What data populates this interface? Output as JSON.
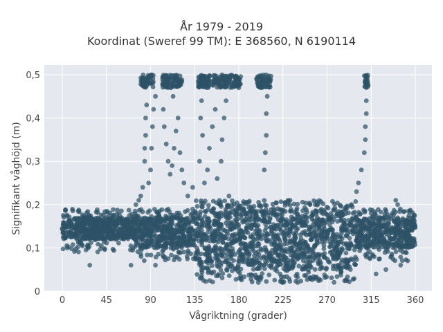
{
  "chart_data": {
    "type": "scatter",
    "title_line1": "År 1979 - 2019",
    "title_line2": "Koordinat (Sweref 99 TM): E 368560, N 6190114",
    "xlabel": "Vågriktning (grader)",
    "ylabel": "Signifikant våghöjd (m)",
    "xlim": [
      -18,
      370
    ],
    "ylim": [
      0,
      0.52
    ],
    "xticks": [
      0,
      45,
      90,
      135,
      180,
      225,
      270,
      315,
      360
    ],
    "xtick_labels": [
      "0",
      "45",
      "90",
      "135",
      "180",
      "225",
      "270",
      "315",
      "360"
    ],
    "yticks": [
      0,
      0.1,
      0.2,
      0.3,
      0.4,
      0.5
    ],
    "ytick_labels": [
      "0",
      "0,1",
      "0,2",
      "0,3",
      "0,4",
      "0,5"
    ],
    "grid": true,
    "legend": "none",
    "marker_color": "#2e5266",
    "plot_background": "#e5e8ee",
    "dense_band": {
      "x_range": [
        0,
        360
      ],
      "core": [
        {
          "x": [
            0,
            75
          ],
          "y": [
            0.12,
            0.17
          ]
        },
        {
          "x": [
            75,
            135
          ],
          "y": [
            0.1,
            0.17
          ]
        },
        {
          "x": [
            135,
            300
          ],
          "y": [
            0.05,
            0.19
          ]
        },
        {
          "x": [
            300,
            360
          ],
          "y": [
            0.1,
            0.17
          ]
        }
      ]
    },
    "clusters_at_0_5": [
      {
        "x": [
          80,
          93
        ],
        "y": [
          0.47,
          0.5
        ]
      },
      {
        "x": [
          102,
          122
        ],
        "y": [
          0.47,
          0.5
        ]
      },
      {
        "x": [
          138,
          182
        ],
        "y": [
          0.47,
          0.5
        ]
      },
      {
        "x": [
          198,
          213
        ],
        "y": [
          0.47,
          0.5
        ]
      },
      {
        "x": [
          308,
          312
        ],
        "y": [
          0.47,
          0.5
        ]
      }
    ],
    "points": [
      {
        "x": 28,
        "y": 0.06
      },
      {
        "x": 70,
        "y": 0.06
      },
      {
        "x": 75,
        "y": 0.2
      },
      {
        "x": 78,
        "y": 0.21
      },
      {
        "x": 80,
        "y": 0.22
      },
      {
        "x": 82,
        "y": 0.24
      },
      {
        "x": 84,
        "y": 0.3
      },
      {
        "x": 84,
        "y": 0.33
      },
      {
        "x": 85,
        "y": 0.36
      },
      {
        "x": 85,
        "y": 0.4
      },
      {
        "x": 86,
        "y": 0.43
      },
      {
        "x": 88,
        "y": 0.25
      },
      {
        "x": 90,
        "y": 0.28
      },
      {
        "x": 91,
        "y": 0.33
      },
      {
        "x": 92,
        "y": 0.38
      },
      {
        "x": 93,
        "y": 0.42
      },
      {
        "x": 95,
        "y": 0.45
      },
      {
        "x": 95,
        "y": 0.06
      },
      {
        "x": 103,
        "y": 0.42
      },
      {
        "x": 104,
        "y": 0.38
      },
      {
        "x": 106,
        "y": 0.34
      },
      {
        "x": 108,
        "y": 0.3
      },
      {
        "x": 110,
        "y": 0.27
      },
      {
        "x": 112,
        "y": 0.29
      },
      {
        "x": 113,
        "y": 0.45
      },
      {
        "x": 114,
        "y": 0.33
      },
      {
        "x": 116,
        "y": 0.37
      },
      {
        "x": 118,
        "y": 0.4
      },
      {
        "x": 120,
        "y": 0.32
      },
      {
        "x": 122,
        "y": 0.28
      },
      {
        "x": 124,
        "y": 0.25
      },
      {
        "x": 128,
        "y": 0.22
      },
      {
        "x": 133,
        "y": 0.24
      },
      {
        "x": 140,
        "y": 0.3
      },
      {
        "x": 141,
        "y": 0.4
      },
      {
        "x": 142,
        "y": 0.44
      },
      {
        "x": 143,
        "y": 0.36
      },
      {
        "x": 145,
        "y": 0.25
      },
      {
        "x": 148,
        "y": 0.28
      },
      {
        "x": 150,
        "y": 0.33
      },
      {
        "x": 153,
        "y": 0.38
      },
      {
        "x": 156,
        "y": 0.42
      },
      {
        "x": 158,
        "y": 0.26
      },
      {
        "x": 162,
        "y": 0.3
      },
      {
        "x": 163,
        "y": 0.35
      },
      {
        "x": 165,
        "y": 0.4
      },
      {
        "x": 167,
        "y": 0.44
      },
      {
        "x": 170,
        "y": 0.22
      },
      {
        "x": 180,
        "y": 0.47
      },
      {
        "x": 206,
        "y": 0.28
      },
      {
        "x": 207,
        "y": 0.32
      },
      {
        "x": 208,
        "y": 0.36
      },
      {
        "x": 208,
        "y": 0.41
      },
      {
        "x": 209,
        "y": 0.45
      },
      {
        "x": 200,
        "y": 0.02
      },
      {
        "x": 225,
        "y": 0.02
      },
      {
        "x": 240,
        "y": 0.02
      },
      {
        "x": 295,
        "y": 0.2
      },
      {
        "x": 300,
        "y": 0.23
      },
      {
        "x": 302,
        "y": 0.25
      },
      {
        "x": 305,
        "y": 0.28
      },
      {
        "x": 308,
        "y": 0.32
      },
      {
        "x": 309,
        "y": 0.35
      },
      {
        "x": 309,
        "y": 0.38
      },
      {
        "x": 310,
        "y": 0.41
      },
      {
        "x": 310,
        "y": 0.44
      },
      {
        "x": 320,
        "y": 0.04
      },
      {
        "x": 330,
        "y": 0.05
      },
      {
        "x": 340,
        "y": 0.21
      },
      {
        "x": 342,
        "y": 0.2
      },
      {
        "x": 345,
        "y": 0.06
      },
      {
        "x": 350,
        "y": 0.09
      }
    ]
  }
}
